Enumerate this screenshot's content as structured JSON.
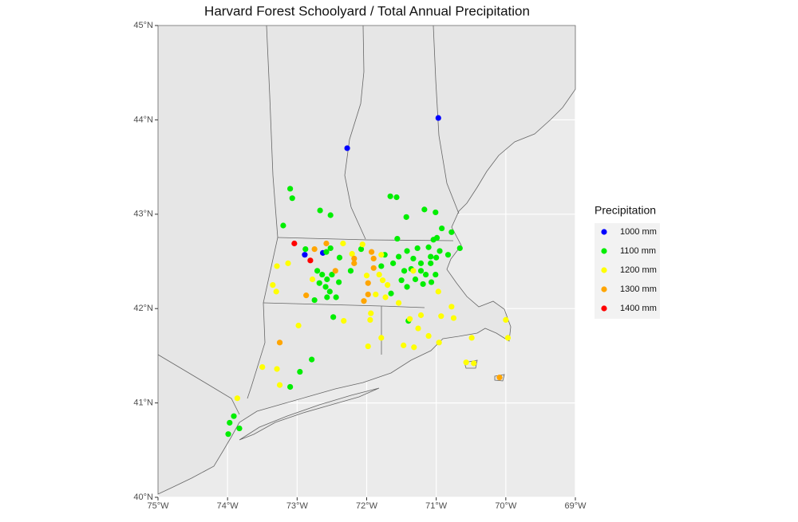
{
  "chart_data": {
    "type": "map",
    "title": "Harvard Forest Schoolyard / Total Annual Precipitation",
    "legend_title": "Precipitation",
    "xlim": [
      -75,
      -69
    ],
    "ylim": [
      40,
      45
    ],
    "xticks": [
      {
        "value": -75,
        "label": "75°W"
      },
      {
        "value": -74,
        "label": "74°W"
      },
      {
        "value": -73,
        "label": "73°W"
      },
      {
        "value": -72,
        "label": "72°W"
      },
      {
        "value": -71,
        "label": "71°W"
      },
      {
        "value": -70,
        "label": "70°W"
      },
      {
        "value": -69,
        "label": "69°W"
      }
    ],
    "yticks": [
      {
        "value": 40,
        "label": "40°N"
      },
      {
        "value": 41,
        "label": "41°N"
      },
      {
        "value": 42,
        "label": "42°N"
      },
      {
        "value": 43,
        "label": "43°N"
      },
      {
        "value": 44,
        "label": "44°N"
      },
      {
        "value": 45,
        "label": "45°N"
      }
    ],
    "grid": true,
    "series": [
      {
        "name": "1000 mm",
        "color": "#0000ff",
        "x": [
          -70.97,
          -72.28,
          -72.89,
          -72.63
        ],
        "values": [
          44.02,
          43.7,
          42.57,
          42.59
        ]
      },
      {
        "name": "1100 mm",
        "color": "#00ee00",
        "x": [
          -73.1,
          -73.07,
          -73.2,
          -72.67,
          -72.52,
          -71.66,
          -71.57,
          -71.43,
          -71.17,
          -71.01,
          -70.78,
          -70.92,
          -70.99,
          -71.04,
          -71.56,
          -72.88,
          -72.58,
          -72.52,
          -72.39,
          -72.08,
          -72.71,
          -72.64,
          -72.57,
          -72.5,
          -72.68,
          -72.59,
          -72.53,
          -72.4,
          -72.23,
          -72.44,
          -72.57,
          -72.75,
          -72.48,
          -72.79,
          -72.96,
          -73.1,
          -73.97,
          -73.83,
          -73.91,
          -73.99,
          -70.66,
          -70.83,
          -71.0,
          -71.08,
          -71.27,
          -71.42,
          -71.54,
          -71.62,
          -71.46,
          -71.36,
          -71.22,
          -71.15,
          -71.07,
          -71.01,
          -71.19,
          -71.3,
          -71.5,
          -71.74,
          -71.79,
          -71.65,
          -71.42,
          -71.4,
          -71.08,
          -70.95,
          -71.11,
          -71.33,
          -71.22
        ],
        "values": [
          43.27,
          43.17,
          42.88,
          43.04,
          42.99,
          43.19,
          43.18,
          42.97,
          43.05,
          43.02,
          42.81,
          42.85,
          42.75,
          42.73,
          42.74,
          42.63,
          42.6,
          42.64,
          42.54,
          42.63,
          42.4,
          42.36,
          42.31,
          42.36,
          42.27,
          42.23,
          42.18,
          42.28,
          42.4,
          42.12,
          42.12,
          42.09,
          41.91,
          41.46,
          41.33,
          41.17,
          40.79,
          40.73,
          40.86,
          40.67,
          42.64,
          42.57,
          42.54,
          42.48,
          42.64,
          42.61,
          42.55,
          42.48,
          42.4,
          42.42,
          42.4,
          42.36,
          42.28,
          42.36,
          42.26,
          42.31,
          42.3,
          42.57,
          42.45,
          42.16,
          42.23,
          41.87,
          42.55,
          42.61,
          42.65,
          42.53,
          42.48
        ]
      },
      {
        "name": "1200 mm",
        "color": "#ffff00",
        "x": [
          -73.29,
          -73.35,
          -73.3,
          -73.13,
          -72.98,
          -73.29,
          -73.5,
          -73.25,
          -73.86,
          -72.78,
          -72.34,
          -72.21,
          -72.06,
          -71.79,
          -71.82,
          -71.77,
          -71.7,
          -71.87,
          -72.0,
          -71.94,
          -71.95,
          -71.98,
          -71.79,
          -71.73,
          -71.54,
          -71.38,
          -71.22,
          -71.26,
          -71.32,
          -71.11,
          -70.96,
          -70.93,
          -70.78,
          -70.97,
          -70.75,
          -70.57,
          -70.46,
          -70.0,
          -69.97,
          -70.49,
          -71.47,
          -72.33,
          -71.33
        ],
        "values": [
          42.45,
          42.25,
          42.18,
          42.48,
          41.82,
          41.36,
          41.38,
          41.19,
          41.05,
          42.31,
          42.69,
          42.58,
          42.68,
          42.57,
          42.36,
          42.3,
          42.25,
          42.15,
          42.35,
          41.95,
          41.88,
          41.6,
          41.69,
          42.12,
          42.06,
          41.89,
          41.93,
          41.79,
          41.59,
          41.71,
          41.64,
          41.92,
          42.02,
          42.18,
          41.9,
          41.43,
          41.42,
          41.88,
          41.69,
          41.69,
          41.61,
          41.87,
          42.4
        ]
      },
      {
        "name": "1300 mm",
        "color": "#ffa500",
        "x": [
          -72.87,
          -73.25,
          -72.75,
          -72.45,
          -72.18,
          -72.18,
          -71.98,
          -71.93,
          -71.9,
          -71.9,
          -71.98,
          -72.04,
          -70.09,
          -72.58
        ],
        "values": [
          42.14,
          41.64,
          42.63,
          42.4,
          42.53,
          42.48,
          42.27,
          42.6,
          42.53,
          42.43,
          42.15,
          42.08,
          41.27,
          42.69
        ]
      },
      {
        "name": "1400 mm",
        "color": "#ff0000",
        "x": [
          -73.04,
          -72.81
        ],
        "values": [
          42.69,
          42.51
        ]
      }
    ]
  }
}
